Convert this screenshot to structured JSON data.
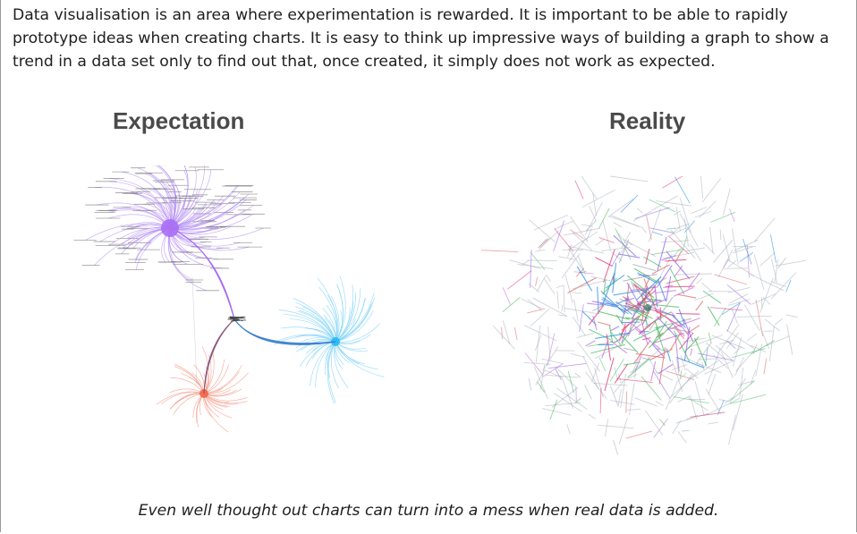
{
  "intro_text": "Data visualisation is an area where experimentation is rewarded. It is important to be able to rapidly prototype ideas when creating charts. It is easy to think up impressive ways of building a graph to show a trend in a data set only to find out that, once created, it simply does not work as expected.",
  "panels": {
    "expectation": {
      "title": "Expectation",
      "clusters": [
        {
          "color": "#a76af5",
          "edge_color": "#b894f5"
        },
        {
          "color": "#1fb6f2",
          "edge_color": "#7fd3f7"
        },
        {
          "color": "#f06040",
          "edge_color": "#f59a8a"
        }
      ]
    },
    "reality": {
      "title": "Reality",
      "palette": [
        "#8a5cf0",
        "#3cb44a",
        "#e0306a",
        "#1e88e5",
        "#9aa6b2",
        "#46c06a",
        "#c06ad8",
        "#e06060"
      ]
    }
  },
  "caption": "Even well thought out charts can turn into a mess when real data is added."
}
